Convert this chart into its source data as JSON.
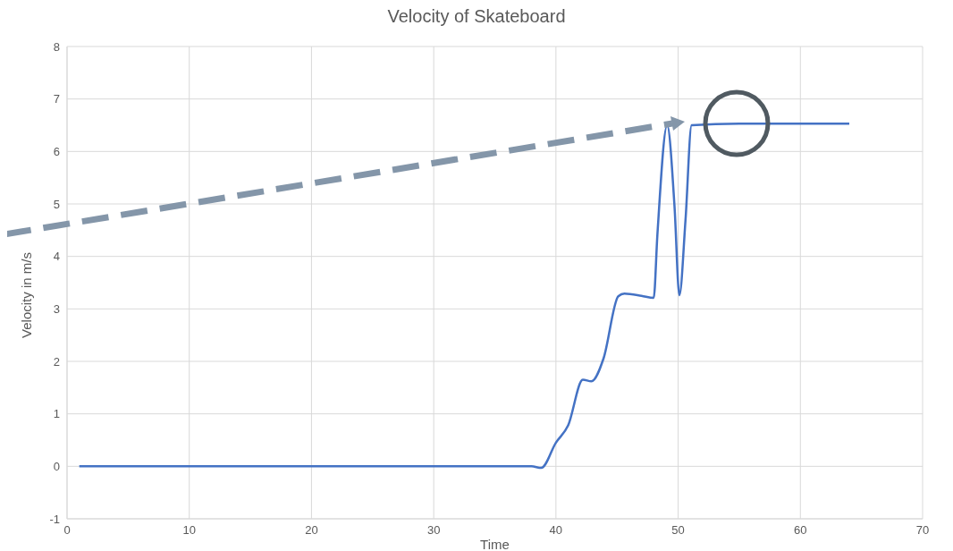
{
  "chart_data": {
    "type": "line",
    "title": "Velocity of Skateboard",
    "xlabel": "Time",
    "ylabel": "Velocity in m/s",
    "x": [
      1,
      10,
      20,
      30,
      38,
      38.8,
      40,
      41,
      42.2,
      42.9,
      43.9,
      45.1,
      45.6,
      47,
      48,
      48.3,
      49.1,
      49.7,
      50.1,
      50.6,
      51.1,
      55,
      60,
      64
    ],
    "series": [
      {
        "color": "#4472c4",
        "values": [
          0,
          0,
          0,
          0,
          0,
          -0.03,
          0.45,
          0.78,
          1.65,
          1.62,
          2.06,
          3.24,
          3.29,
          3.25,
          3.21,
          4.41,
          6.5,
          4.96,
          3.26,
          4.69,
          6.5,
          6.53,
          6.53,
          6.53
        ]
      }
    ],
    "xlim": [
      0,
      70
    ],
    "xticks": [
      0,
      10,
      20,
      30,
      40,
      50,
      60,
      70
    ],
    "ylim": [
      -1,
      8
    ],
    "yticks": [
      -1,
      0,
      1,
      2,
      3,
      4,
      5,
      6,
      7,
      8
    ],
    "grid": true,
    "marker": "none",
    "line_style": "solid"
  }
}
